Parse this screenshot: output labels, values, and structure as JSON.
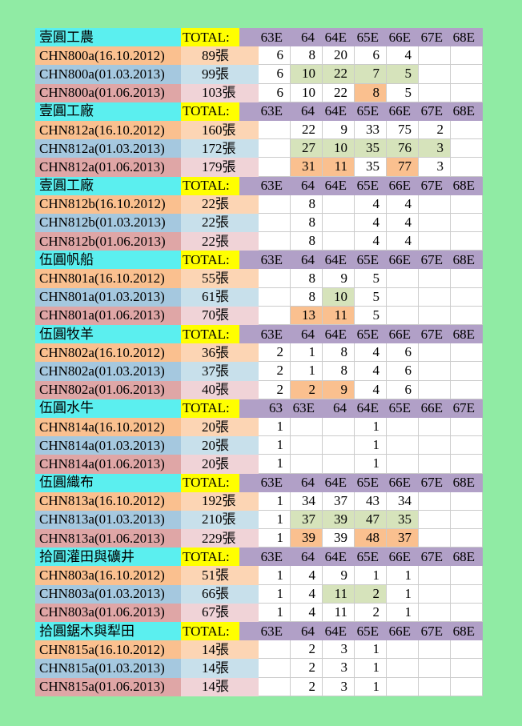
{
  "page": {
    "background": "#90EBA4"
  },
  "palette": {
    "section_title_bg": "#5BEFEF",
    "total_header_bg": "#FFFF00",
    "column_header_bg": "#B1A0C7",
    "row1_bg": "#FAC08F",
    "row1_total_bg": "#FCD5B4",
    "row2_bg": "#A5C8DF",
    "row2_total_bg": "#C8E0EB",
    "row3_bg": "#DFA6A6",
    "row3_total_bg": "#F0D3D7",
    "highlight_green": "#D6E3BB",
    "highlight_orange": "#FAC08F",
    "cell_border": "#CBCBCB"
  },
  "table": {
    "total_header": "TOTAL:",
    "sections": [
      {
        "title": "壹圓工農",
        "columns": [
          "63E",
          "64",
          "64E",
          "65E",
          "66E",
          "67E",
          "68E"
        ],
        "rows": [
          {
            "label": "CHN800a(16.10.2012)",
            "total": "89張",
            "tone": "orange",
            "cells": [
              "6",
              "8",
              "20",
              "6",
              "4",
              "",
              ""
            ],
            "hl": [
              "",
              "",
              "",
              "",
              "",
              "",
              ""
            ]
          },
          {
            "label": "CHN800a(01.03.2013)",
            "total": "99張",
            "tone": "blue",
            "cells": [
              "6",
              "10",
              "22",
              "7",
              "5",
              "",
              ""
            ],
            "hl": [
              "",
              "g",
              "g",
              "g",
              "g",
              "",
              ""
            ]
          },
          {
            "label": "CHN800a(01.06.2013)",
            "total": "103張",
            "tone": "rose",
            "cells": [
              "6",
              "10",
              "22",
              "8",
              "5",
              "",
              ""
            ],
            "hl": [
              "",
              "",
              "",
              "o",
              "",
              "",
              ""
            ]
          }
        ]
      },
      {
        "title": "壹圓工廠",
        "columns": [
          "63E",
          "64",
          "64E",
          "65E",
          "66E",
          "67E",
          "68E"
        ],
        "rows": [
          {
            "label": "CHN812a(16.10.2012)",
            "total": "160張",
            "tone": "orange",
            "cells": [
              "",
              "22",
              "9",
              "33",
              "75",
              "2",
              ""
            ],
            "hl": [
              "",
              "",
              "",
              "",
              "",
              "",
              ""
            ]
          },
          {
            "label": "CHN812a(01.03.2013)",
            "total": "172張",
            "tone": "blue",
            "cells": [
              "",
              "27",
              "10",
              "35",
              "76",
              "3",
              ""
            ],
            "hl": [
              "",
              "g",
              "g",
              "g",
              "g",
              "g",
              ""
            ]
          },
          {
            "label": "CHN812a(01.06.2013)",
            "total": "179張",
            "tone": "rose",
            "cells": [
              "",
              "31",
              "11",
              "35",
              "77",
              "3",
              ""
            ],
            "hl": [
              "",
              "o",
              "o",
              "",
              "o",
              "",
              ""
            ]
          }
        ]
      },
      {
        "title": "壹圓工廠",
        "columns": [
          "63E",
          "64",
          "64E",
          "65E",
          "66E",
          "67E",
          "68E"
        ],
        "rows": [
          {
            "label": "CHN812b(16.10.2012)",
            "total": "22張",
            "tone": "orange",
            "cells": [
              "",
              "8",
              "",
              "4",
              "4",
              "",
              ""
            ],
            "hl": [
              "",
              "",
              "",
              "",
              "",
              "",
              ""
            ]
          },
          {
            "label": "CHN812b(01.03.2013)",
            "total": "22張",
            "tone": "blue",
            "cells": [
              "",
              "8",
              "",
              "4",
              "4",
              "",
              ""
            ],
            "hl": [
              "",
              "",
              "",
              "",
              "",
              "",
              ""
            ]
          },
          {
            "label": "CHN812b(01.06.2013)",
            "total": "22張",
            "tone": "rose",
            "cells": [
              "",
              "8",
              "",
              "4",
              "4",
              "",
              ""
            ],
            "hl": [
              "",
              "",
              "",
              "",
              "",
              "",
              ""
            ]
          }
        ]
      },
      {
        "title": "伍圓帆船",
        "columns": [
          "63E",
          "64",
          "64E",
          "65E",
          "66E",
          "67E",
          "68E"
        ],
        "rows": [
          {
            "label": "CHN801a(16.10.2012)",
            "total": "55張",
            "tone": "orange",
            "cells": [
              "",
              "8",
              "9",
              "5",
              "",
              "",
              ""
            ],
            "hl": [
              "",
              "",
              "",
              "",
              "",
              "",
              ""
            ]
          },
          {
            "label": "CHN801a(01.03.2013)",
            "total": "61張",
            "tone": "blue",
            "cells": [
              "",
              "8",
              "10",
              "5",
              "",
              "",
              ""
            ],
            "hl": [
              "",
              "",
              "g",
              "",
              "",
              "",
              ""
            ]
          },
          {
            "label": "CHN801a(01.06.2013)",
            "total": "70張",
            "tone": "rose",
            "cells": [
              "",
              "13",
              "11",
              "5",
              "",
              "",
              ""
            ],
            "hl": [
              "",
              "o",
              "o",
              "",
              "",
              "",
              ""
            ]
          }
        ]
      },
      {
        "title": "伍圓牧羊",
        "columns": [
          "63E",
          "64",
          "64E",
          "65E",
          "66E",
          "67E",
          "68E"
        ],
        "rows": [
          {
            "label": "CHN802a(16.10.2012)",
            "total": "36張",
            "tone": "orange",
            "cells": [
              "2",
              "1",
              "8",
              "4",
              "6",
              "",
              ""
            ],
            "hl": [
              "",
              "",
              "",
              "",
              "",
              "",
              ""
            ]
          },
          {
            "label": "CHN802a(01.03.2013)",
            "total": "37張",
            "tone": "blue",
            "cells": [
              "2",
              "1",
              "8",
              "4",
              "6",
              "",
              ""
            ],
            "hl": [
              "",
              "",
              "",
              "",
              "",
              "",
              ""
            ]
          },
          {
            "label": "CHN802a(01.06.2013)",
            "total": "40張",
            "tone": "rose",
            "cells": [
              "2",
              "2",
              "9",
              "4",
              "6",
              "",
              ""
            ],
            "hl": [
              "",
              "o",
              "o",
              "",
              "",
              "",
              ""
            ]
          }
        ]
      },
      {
        "title": "伍圓水牛",
        "columns": [
          "63",
          "63E",
          "64",
          "64E",
          "65E",
          "66E",
          "67E"
        ],
        "rows": [
          {
            "label": "CHN814a(16.10.2012)",
            "total": "20張",
            "tone": "orange",
            "cells": [
              "1",
              "",
              "",
              "1",
              "",
              "",
              ""
            ],
            "hl": [
              "",
              "",
              "",
              "",
              "",
              "",
              ""
            ]
          },
          {
            "label": "CHN814a(01.03.2013)",
            "total": "20張",
            "tone": "blue",
            "cells": [
              "1",
              "",
              "",
              "1",
              "",
              "",
              ""
            ],
            "hl": [
              "",
              "",
              "",
              "",
              "",
              "",
              ""
            ]
          },
          {
            "label": "CHN814a(01.06.2013)",
            "total": "20張",
            "tone": "rose",
            "cells": [
              "1",
              "",
              "",
              "1",
              "",
              "",
              ""
            ],
            "hl": [
              "",
              "",
              "",
              "",
              "",
              "",
              ""
            ]
          }
        ]
      },
      {
        "title": "伍圓織布",
        "columns": [
          "63E",
          "64",
          "64E",
          "65E",
          "66E",
          "67E",
          "68E"
        ],
        "rows": [
          {
            "label": "CHN813a(16.10.2012)",
            "total": "192張",
            "tone": "orange",
            "cells": [
              "1",
              "34",
              "37",
              "43",
              "34",
              "",
              ""
            ],
            "hl": [
              "",
              "",
              "",
              "",
              "",
              "",
              ""
            ]
          },
          {
            "label": "CHN813a(01.03.2013)",
            "total": "210張",
            "tone": "blue",
            "cells": [
              "1",
              "37",
              "39",
              "47",
              "35",
              "",
              ""
            ],
            "hl": [
              "",
              "g",
              "g",
              "g",
              "g",
              "",
              ""
            ]
          },
          {
            "label": "CHN813a(01.06.2013)",
            "total": "229張",
            "tone": "rose",
            "cells": [
              "1",
              "39",
              "39",
              "48",
              "37",
              "",
              ""
            ],
            "hl": [
              "",
              "o",
              "",
              "o",
              "o",
              "",
              ""
            ]
          }
        ]
      },
      {
        "title": "拾圓灌田與礦井",
        "columns": [
          "63E",
          "64",
          "64E",
          "65E",
          "66E",
          "67E",
          "68E"
        ],
        "rows": [
          {
            "label": "CHN803a(16.10.2012)",
            "total": "51張",
            "tone": "orange",
            "cells": [
              "1",
              "4",
              "9",
              "1",
              "1",
              "",
              ""
            ],
            "hl": [
              "",
              "",
              "",
              "",
              "",
              "",
              ""
            ]
          },
          {
            "label": "CHN803a(01.03.2013)",
            "total": "66張",
            "tone": "blue",
            "cells": [
              "1",
              "4",
              "11",
              "2",
              "1",
              "",
              ""
            ],
            "hl": [
              "",
              "",
              "g",
              "g",
              "",
              "",
              ""
            ]
          },
          {
            "label": "CHN803a(01.06.2013)",
            "total": "67張",
            "tone": "rose",
            "cells": [
              "1",
              "4",
              "11",
              "2",
              "1",
              "",
              ""
            ],
            "hl": [
              "",
              "",
              "",
              "",
              "",
              "",
              ""
            ]
          }
        ]
      },
      {
        "title": "拾圓鋸木與犁田",
        "columns": [
          "63E",
          "64",
          "64E",
          "65E",
          "66E",
          "67E",
          "68E"
        ],
        "rows": [
          {
            "label": "CHN815a(16.10.2012)",
            "total": "14張",
            "tone": "orange",
            "cells": [
              "",
              "2",
              "3",
              "1",
              "",
              "",
              ""
            ],
            "hl": [
              "",
              "",
              "",
              "",
              "",
              "",
              ""
            ]
          },
          {
            "label": "CHN815a(01.03.2013)",
            "total": "14張",
            "tone": "blue",
            "cells": [
              "",
              "2",
              "3",
              "1",
              "",
              "",
              ""
            ],
            "hl": [
              "",
              "",
              "",
              "",
              "",
              "",
              ""
            ]
          },
          {
            "label": "CHN815a(01.06.2013)",
            "total": "14張",
            "tone": "rose",
            "cells": [
              "",
              "2",
              "3",
              "1",
              "",
              "",
              ""
            ],
            "hl": [
              "",
              "",
              "",
              "",
              "",
              "",
              ""
            ]
          }
        ]
      }
    ]
  }
}
